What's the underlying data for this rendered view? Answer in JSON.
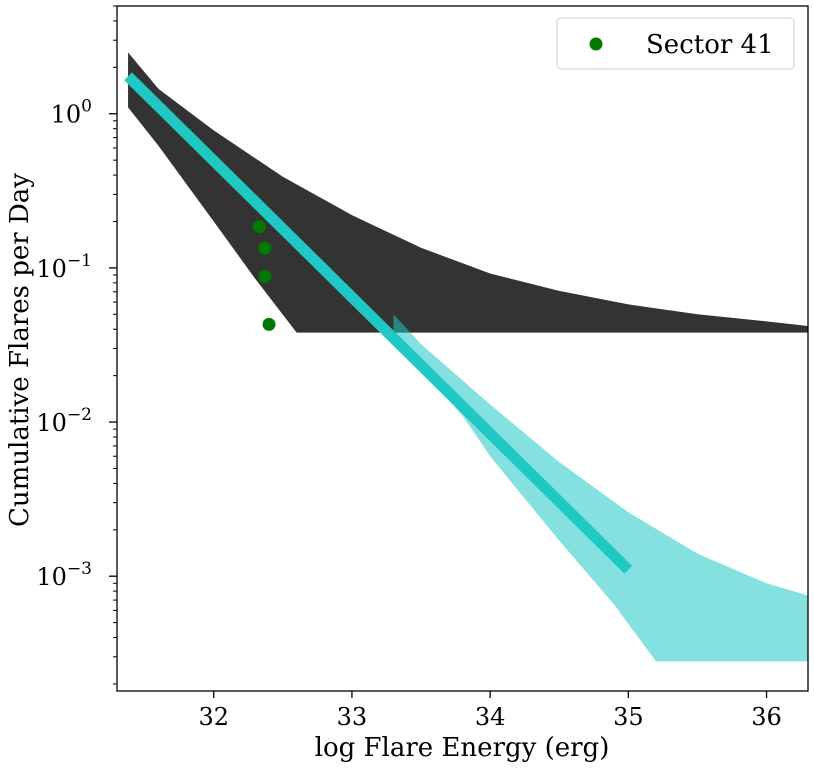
{
  "chart_data": {
    "type": "line",
    "xlabel": "log Flare Energy (erg)",
    "ylabel": "Cumulative Flares per Day",
    "yscale": "log",
    "xlim": [
      31.3,
      36.3
    ],
    "ylim": [
      0.00018,
      5.0
    ],
    "x_ticks": [
      32,
      33,
      34,
      35,
      36
    ],
    "x_tick_labels": [
      "32",
      "33",
      "34",
      "35",
      "36"
    ],
    "y_ticks": [
      1.0,
      0.1,
      0.01,
      0.001
    ],
    "y_tick_base": "10",
    "y_tick_exponents": [
      "0",
      "−1",
      "−2",
      "−3"
    ],
    "legend": {
      "label": "Sector 41",
      "position": "top-right"
    },
    "colors": {
      "sector": "#007a00",
      "model": "#20c8c4",
      "posterior": "#333333"
    },
    "series": [
      {
        "name": "Sector 41",
        "kind": "scatter",
        "x": [
          32.33,
          32.37,
          32.37,
          32.4
        ],
        "y": [
          0.185,
          0.134,
          0.088,
          0.043
        ]
      },
      {
        "name": "model fit",
        "kind": "line",
        "x": [
          31.38,
          35.0
        ],
        "y": [
          1.75,
          0.0011
        ]
      },
      {
        "name": "posterior draws (upper envelope)",
        "kind": "band",
        "x": [
          31.38,
          31.6,
          32.0,
          32.5,
          33.0,
          33.5,
          34.0,
          34.5,
          35.0,
          35.5,
          36.0,
          36.3
        ],
        "y": [
          2.5,
          1.45,
          0.78,
          0.39,
          0.22,
          0.135,
          0.092,
          0.071,
          0.058,
          0.05,
          0.045,
          0.042
        ]
      },
      {
        "name": "posterior draws (lower envelope)",
        "kind": "band",
        "x": [
          31.38,
          31.6,
          32.0,
          32.3,
          32.6
        ],
        "y": [
          1.1,
          0.62,
          0.2,
          0.085,
          0.038
        ]
      },
      {
        "name": "floor",
        "kind": "band",
        "x": [
          32.2,
          36.3
        ],
        "y": [
          0.038,
          0.038
        ]
      },
      {
        "name": "model draws (upper envelope)",
        "kind": "band",
        "x": [
          33.3,
          33.5,
          34.0,
          34.5,
          35.0,
          35.5,
          36.0,
          36.3
        ],
        "y": [
          0.05,
          0.032,
          0.013,
          0.0055,
          0.0026,
          0.0014,
          0.0009,
          0.00075
        ]
      },
      {
        "name": "model draws (lower envelope)",
        "kind": "band",
        "x": [
          33.3,
          33.8,
          34.0,
          34.5,
          34.9,
          35.2
        ],
        "y": [
          0.036,
          0.011,
          0.006,
          0.0017,
          0.00065,
          0.00028
        ]
      },
      {
        "name": "model floor",
        "kind": "band",
        "x": [
          34.9,
          36.3
        ],
        "y": [
          0.00028,
          0.00028
        ]
      }
    ]
  }
}
